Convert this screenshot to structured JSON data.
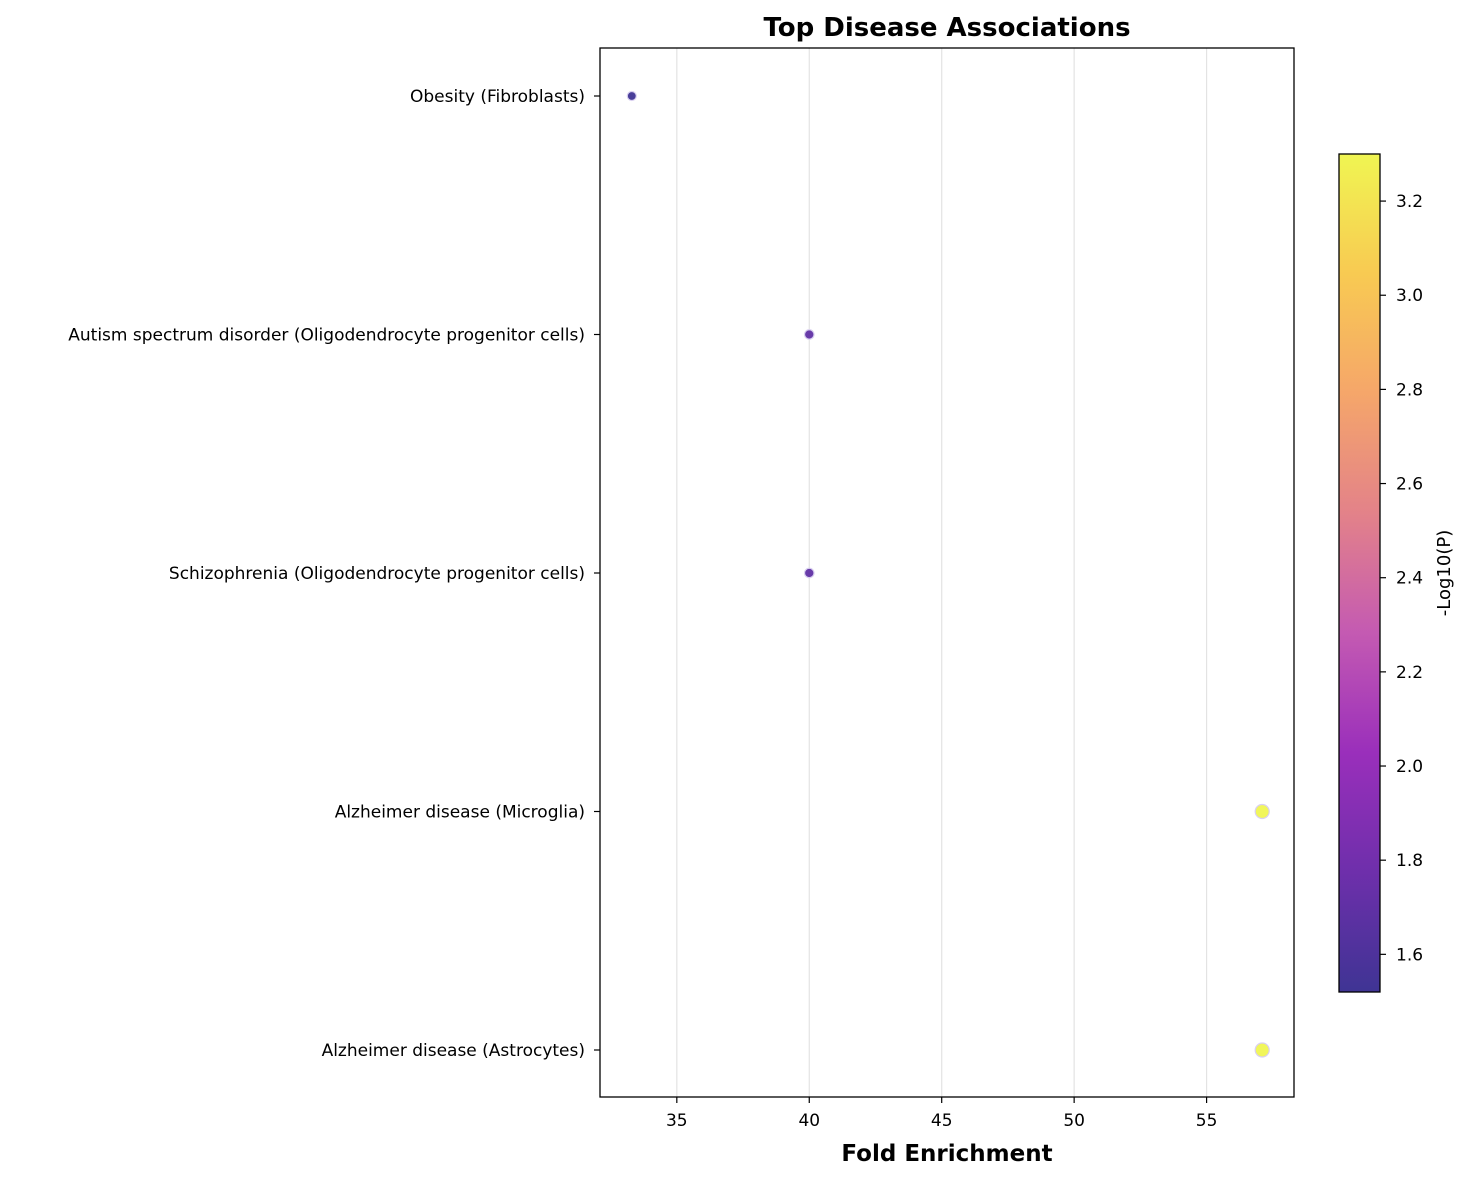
{
  "chart_data": {
    "type": "scatter",
    "title": "Top Disease Associations",
    "xlabel": "Fold Enrichment",
    "ylabel": "",
    "xlim": [
      32.1,
      58.3
    ],
    "x_ticks": [
      35,
      40,
      45,
      50,
      55
    ],
    "grid": "vertical",
    "categories": [
      "Obesity (Fibroblasts)",
      "Autism spectrum disorder (Oligodendrocyte progenitor cells)",
      "Schizophrenia (Oligodendrocyte progenitor cells)",
      "Alzheimer disease (Microglia)",
      "Alzheimer disease (Astrocytes)"
    ],
    "points": [
      {
        "category": "Obesity (Fibroblasts)",
        "x": 33.3,
        "color_value": 1.52
      },
      {
        "category": "Autism spectrum disorder (Oligodendrocyte progenitor cells)",
        "x": 40.0,
        "color_value": 1.7
      },
      {
        "category": "Schizophrenia (Oligodendrocyte progenitor cells)",
        "x": 40.0,
        "color_value": 1.7
      },
      {
        "category": "Alzheimer disease (Microglia)",
        "x": 57.1,
        "color_value": 3.3
      },
      {
        "category": "Alzheimer disease (Astrocytes)",
        "x": 57.1,
        "color_value": 3.3
      }
    ],
    "colorbar": {
      "label": "-Log10(P)",
      "range": [
        1.52,
        3.3
      ],
      "ticks": [
        1.6,
        1.8,
        2.0,
        2.2,
        2.4,
        2.6,
        2.8,
        3.0,
        3.2
      ],
      "colormap": "plasma",
      "stops": [
        "#3f3494",
        "#6e2fab",
        "#9a2fbb",
        "#c45ab2",
        "#e38289",
        "#f5a66a",
        "#f8ca52",
        "#f0f552"
      ]
    }
  }
}
